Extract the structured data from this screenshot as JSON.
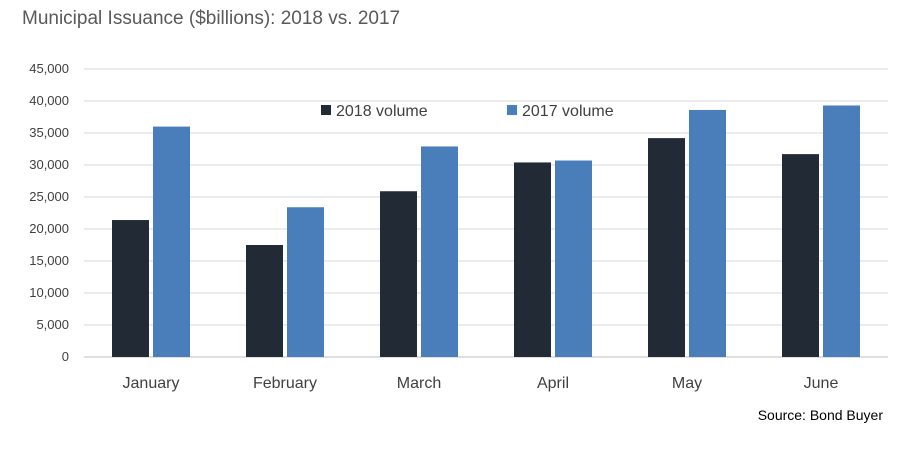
{
  "chart_data": {
    "type": "bar",
    "title": "Municipal Issuance ($billions): 2018 vs. 2017",
    "source": "Source: Bond Buyer",
    "categories": [
      "January",
      "February",
      "March",
      "April",
      "May",
      "June"
    ],
    "series": [
      {
        "name": "2018 volume",
        "color": "#222a35",
        "values": [
          21400,
          17500,
          25900,
          30400,
          34200,
          31700
        ]
      },
      {
        "name": "2017 volume",
        "color": "#4a7ebb",
        "values": [
          36000,
          23400,
          32900,
          30700,
          38600,
          39300
        ]
      }
    ],
    "xlabel": "",
    "ylabel": "",
    "ylim": [
      0,
      45000
    ],
    "yticks": [
      0,
      5000,
      10000,
      15000,
      20000,
      25000,
      30000,
      35000,
      40000,
      45000
    ],
    "ytick_labels": [
      "0",
      "5,000",
      "10,000",
      "15,000",
      "20,000",
      "25,000",
      "30,000",
      "35,000",
      "40,000",
      "45,000"
    ],
    "grid": true,
    "legend_position": "top-center"
  }
}
